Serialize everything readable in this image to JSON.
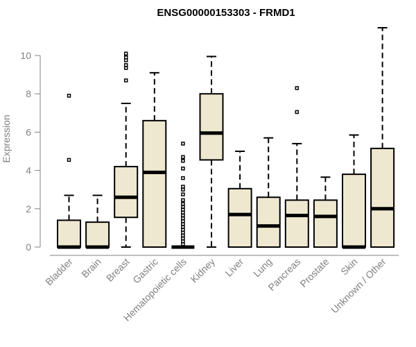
{
  "chart_data": {
    "type": "box",
    "title": "ENSG00000153303 - FRMD1",
    "ylabel": "Expression",
    "xlabel": "",
    "ylim": [
      0,
      11.5
    ],
    "yticks": [
      0,
      2,
      4,
      6,
      8,
      10
    ],
    "grid": false,
    "legend": "none",
    "colors": {
      "box_fill": "#EEE8D0",
      "box_stroke": "#000000",
      "axis": "#808080",
      "text": "#808080",
      "title": "#000000"
    },
    "categories": [
      "Bladder",
      "Brain",
      "Breast",
      "Gastric",
      "Hematopoietic cells",
      "Kidney",
      "Liver",
      "Lung",
      "Pancreas",
      "Prostate",
      "Skin",
      "Unknown / Other"
    ],
    "boxes": [
      {
        "category": "Bladder",
        "whisker_low": 0,
        "q1": 0,
        "median": 0,
        "q3": 1.4,
        "whisker_high": 2.7,
        "outliers": [
          4.55,
          7.9
        ]
      },
      {
        "category": "Brain",
        "whisker_low": 0,
        "q1": 0,
        "median": 0,
        "q3": 1.3,
        "whisker_high": 2.7,
        "outliers": []
      },
      {
        "category": "Breast",
        "whisker_low": 0,
        "q1": 1.55,
        "median": 2.6,
        "q3": 4.2,
        "whisker_high": 7.5,
        "outliers": [
          8.7,
          9.35,
          9.5,
          9.75,
          9.9,
          10.1
        ]
      },
      {
        "category": "Gastric",
        "whisker_low": 0,
        "q1": 0,
        "median": 3.9,
        "q3": 6.6,
        "whisker_high": 9.1,
        "outliers": []
      },
      {
        "category": "Hematopoietic cells",
        "whisker_low": 0,
        "q1": 0,
        "median": 0,
        "q3": 0,
        "whisker_high": 0,
        "outliers": [
          0.15,
          0.3,
          0.45,
          0.6,
          0.75,
          0.9,
          1.05,
          1.2,
          1.35,
          1.5,
          1.65,
          1.8,
          1.95,
          2.1,
          2.25,
          2.45,
          2.75,
          3.0,
          3.15,
          3.6,
          4.1,
          4.5,
          4.7,
          5.4
        ]
      },
      {
        "category": "Kidney",
        "whisker_low": 0,
        "q1": 4.55,
        "median": 5.95,
        "q3": 8.0,
        "whisker_high": 9.95,
        "outliers": []
      },
      {
        "category": "Liver",
        "whisker_low": 0,
        "q1": 0,
        "median": 1.7,
        "q3": 3.05,
        "whisker_high": 5.0,
        "outliers": []
      },
      {
        "category": "Lung",
        "whisker_low": 0,
        "q1": 0,
        "median": 1.1,
        "q3": 2.6,
        "whisker_high": 5.7,
        "outliers": []
      },
      {
        "category": "Pancreas",
        "whisker_low": 0,
        "q1": 0,
        "median": 1.65,
        "q3": 2.45,
        "whisker_high": 5.4,
        "outliers": [
          7.05,
          8.3
        ]
      },
      {
        "category": "Prostate",
        "whisker_low": 0,
        "q1": 0,
        "median": 1.6,
        "q3": 2.45,
        "whisker_high": 3.65,
        "outliers": []
      },
      {
        "category": "Skin",
        "whisker_low": 0,
        "q1": 0,
        "median": 0,
        "q3": 3.8,
        "whisker_high": 5.85,
        "outliers": []
      },
      {
        "category": "Unknown / Other",
        "whisker_low": 0,
        "q1": 0,
        "median": 2.0,
        "q3": 5.15,
        "whisker_high": 11.45,
        "outliers": []
      }
    ]
  }
}
